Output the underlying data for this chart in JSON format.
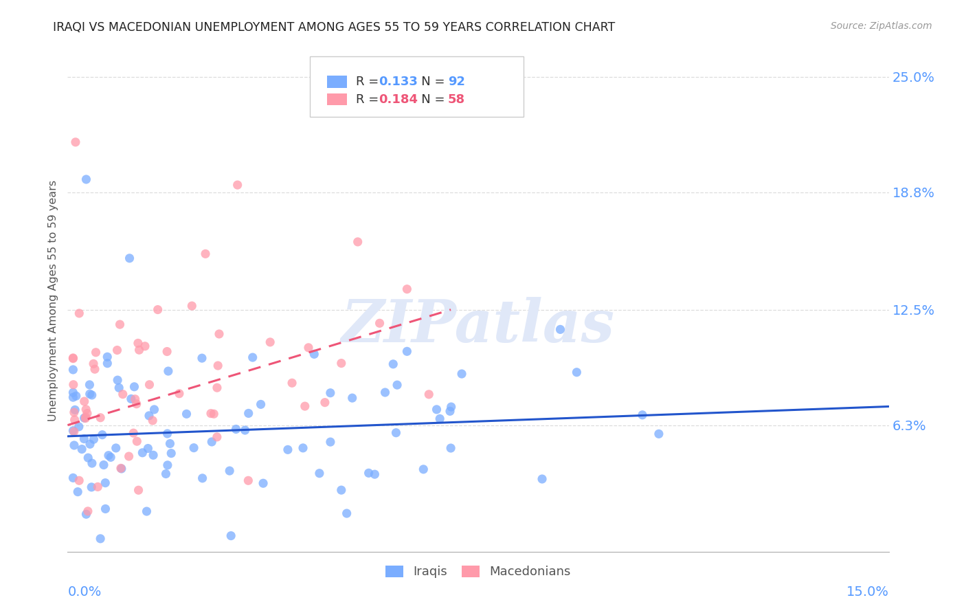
{
  "title": "IRAQI VS MACEDONIAN UNEMPLOYMENT AMONG AGES 55 TO 59 YEARS CORRELATION CHART",
  "source": "Source: ZipAtlas.com",
  "ylabel": "Unemployment Among Ages 55 to 59 years",
  "ytick_labels": [
    "6.3%",
    "12.5%",
    "18.8%",
    "25.0%"
  ],
  "ytick_values": [
    0.063,
    0.125,
    0.188,
    0.25
  ],
  "xlim": [
    0.0,
    0.15
  ],
  "ylim": [
    -0.005,
    0.265
  ],
  "iraqi_color": "#7aadff",
  "macedonian_color": "#ff9aaa",
  "iraqi_line_color": "#2255cc",
  "macedonian_line_color": "#ee5577",
  "legend_iraqi_R": "0.133",
  "legend_iraqi_N": "92",
  "legend_macedonian_R": "0.184",
  "legend_macedonian_N": "58",
  "iraqi_line_x0": 0.0,
  "iraqi_line_y0": 0.057,
  "iraqi_line_x1": 0.15,
  "iraqi_line_y1": 0.073,
  "maced_line_x0": 0.0,
  "maced_line_y0": 0.063,
  "maced_line_x1": 0.07,
  "maced_line_y1": 0.125,
  "background_color": "#ffffff",
  "grid_color": "#dddddd",
  "axis_label_color": "#5599ff",
  "watermark_color": "#e0e8f8",
  "watermark_text": "ZIPatlas",
  "title_color": "#222222",
  "source_color": "#999999"
}
